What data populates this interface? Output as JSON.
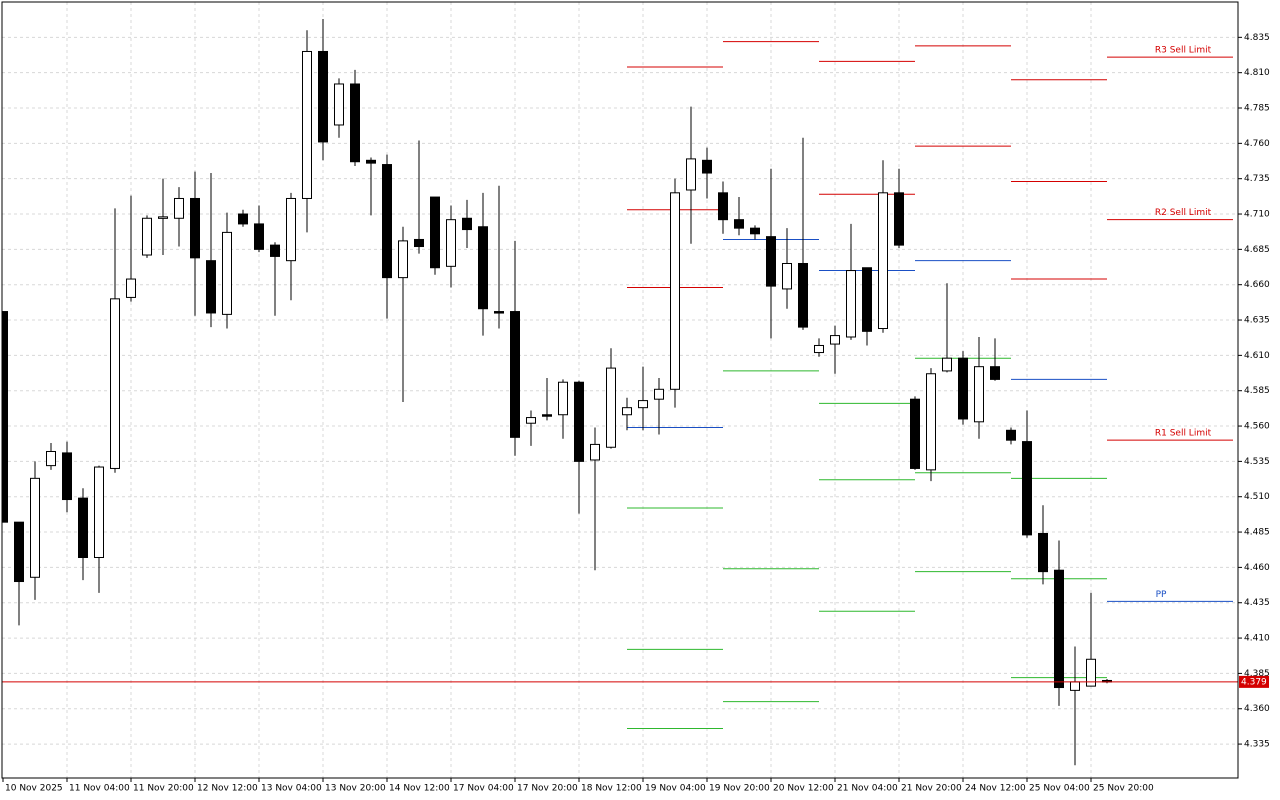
{
  "chart_data": {
    "type": "candlestick",
    "categories": [
      "10 Nov 2025",
      null,
      null,
      null,
      "11 Nov 04:00",
      null,
      null,
      null,
      "11 Nov 20:00",
      null,
      null,
      null,
      "12 Nov 12:00",
      null,
      null,
      null,
      "13 Nov 04:00",
      null,
      null,
      null,
      "13 Nov 20:00",
      null,
      null,
      null,
      "14 Nov 12:00",
      null,
      null,
      null,
      "17 Nov 04:00",
      null,
      null,
      null,
      "17 Nov 20:00",
      null,
      null,
      null,
      "18 Nov 12:00",
      null,
      null,
      null,
      "19 Nov 04:00",
      null,
      null,
      null,
      "19 Nov 20:00",
      null,
      null,
      null,
      "20 Nov 12:00",
      null,
      null,
      null,
      "21 Nov 04:00",
      null,
      null,
      null,
      "21 Nov 20:00",
      null,
      null,
      null,
      "24 Nov 12:00",
      null,
      null,
      null,
      "25 Nov 04:00",
      null,
      null,
      null,
      "25 Nov 20:00",
      null
    ],
    "open": [
      4.641,
      4.492,
      4.453,
      4.532,
      4.541,
      4.509,
      4.467,
      4.53,
      4.651,
      4.681,
      4.707,
      4.707,
      4.721,
      4.677,
      4.639,
      4.71,
      4.703,
      4.688,
      4.677,
      4.721,
      4.825,
      4.773,
      4.802,
      4.748,
      4.745,
      4.665,
      4.692,
      4.722,
      4.673,
      4.707,
      4.701,
      4.641,
      4.641,
      4.562,
      4.568,
      4.568,
      4.591,
      4.536,
      4.545,
      4.568,
      4.573,
      4.579,
      4.586,
      4.727,
      4.748,
      4.725,
      4.706,
      4.7,
      4.694,
      4.657,
      4.675,
      4.612,
      4.618,
      4.623,
      4.672,
      4.629,
      4.725,
      4.579,
      4.529,
      4.599,
      4.608,
      4.563,
      4.602,
      4.557,
      4.549,
      4.484,
      4.458,
      4.373,
      4.376,
      4.38
    ],
    "high": [
      4.641,
      4.492,
      4.535,
      4.548,
      4.549,
      4.516,
      4.532,
      4.714,
      4.723,
      4.709,
      4.735,
      4.729,
      4.74,
      4.739,
      4.711,
      4.713,
      4.716,
      4.69,
      4.725,
      4.84,
      4.848,
      4.806,
      4.812,
      4.75,
      4.752,
      4.701,
      4.762,
      4.722,
      4.716,
      4.72,
      4.725,
      4.73,
      4.691,
      4.571,
      4.594,
      4.593,
      4.592,
      4.559,
      4.615,
      4.58,
      4.602,
      4.594,
      4.735,
      4.786,
      4.757,
      4.733,
      4.722,
      4.702,
      4.742,
      4.7,
      4.764,
      4.622,
      4.631,
      4.703,
      4.672,
      4.748,
      4.742,
      4.581,
      4.601,
      4.661,
      4.613,
      4.623,
      4.622,
      4.559,
      4.571,
      4.504,
      4.479,
      4.404,
      4.442,
      4.381
    ],
    "low": [
      4.492,
      4.419,
      4.437,
      4.529,
      4.499,
      4.451,
      4.442,
      4.527,
      4.648,
      4.679,
      4.681,
      4.687,
      4.638,
      4.63,
      4.629,
      4.701,
      4.683,
      4.638,
      4.649,
      4.697,
      4.748,
      4.764,
      4.744,
      4.709,
      4.636,
      4.577,
      4.682,
      4.667,
      4.658,
      4.686,
      4.624,
      4.629,
      4.539,
      4.546,
      4.564,
      4.551,
      4.498,
      4.458,
      4.544,
      4.557,
      4.557,
      4.554,
      4.573,
      4.689,
      4.721,
      4.696,
      4.695,
      4.692,
      4.622,
      4.643,
      4.628,
      4.609,
      4.597,
      4.621,
      4.617,
      4.626,
      4.686,
      4.529,
      4.521,
      4.598,
      4.561,
      4.551,
      4.592,
      4.547,
      4.481,
      4.448,
      4.362,
      4.32,
      4.376,
      4.378
    ],
    "close": [
      4.492,
      4.45,
      4.523,
      4.542,
      4.508,
      4.467,
      4.531,
      4.65,
      4.664,
      4.707,
      4.708,
      4.721,
      4.679,
      4.64,
      4.697,
      4.703,
      4.685,
      4.68,
      4.721,
      4.825,
      4.761,
      4.802,
      4.747,
      4.746,
      4.665,
      4.691,
      4.687,
      4.672,
      4.706,
      4.699,
      4.643,
      4.64,
      4.552,
      4.566,
      4.567,
      4.591,
      4.535,
      4.547,
      4.601,
      4.573,
      4.578,
      4.586,
      4.725,
      4.749,
      4.739,
      4.706,
      4.7,
      4.696,
      4.659,
      4.675,
      4.63,
      4.617,
      4.624,
      4.67,
      4.627,
      4.725,
      4.688,
      4.53,
      4.597,
      4.608,
      4.565,
      4.602,
      4.593,
      4.55,
      4.483,
      4.457,
      4.375,
      4.379,
      4.395,
      4.379
    ],
    "up_color": "#ffffff",
    "down_color": "#000000",
    "ylim": [
      4.311,
      4.86
    ],
    "yticks": [
      4.335,
      {
        "value": 4.36,
        "label": "4.360"
      },
      4.385,
      {
        "value": 4.41,
        "label": "4.410"
      },
      4.435,
      {
        "value": 4.46,
        "label": "4.460"
      },
      4.485,
      {
        "value": 4.51,
        "label": "4.510"
      },
      4.535,
      {
        "value": 4.56,
        "label": "4.560"
      },
      4.585,
      {
        "value": 4.61,
        "label": "4.610"
      },
      4.635,
      {
        "value": 4.66,
        "label": "4.660"
      },
      4.685,
      {
        "value": 4.71,
        "label": "4.710"
      },
      4.735,
      {
        "value": 4.76,
        "label": "4.760"
      },
      4.785,
      {
        "value": 4.81,
        "label": "4.810"
      },
      4.835
    ],
    "grid": true,
    "last_price": 4.379,
    "price_line_color": "#d40000",
    "resistance_color": "#d40000",
    "pivot_color": "#1a4fc4",
    "support_color": "#2eb82e",
    "pivot_levels": [
      {
        "start": 39,
        "end": 45,
        "resistance": [
          4.814,
          4.713,
          4.658
        ],
        "pivot": 4.559,
        "support": [
          4.502,
          4.402,
          4.346
        ]
      },
      {
        "start": 45,
        "end": 51,
        "resistance": [
          4.832
        ],
        "pivot": 4.692,
        "support": [
          4.599,
          4.459,
          4.365
        ]
      },
      {
        "start": 51,
        "end": 57,
        "resistance": [
          4.818,
          4.724
        ],
        "pivot": 4.67,
        "support": [
          4.576,
          4.522,
          4.429
        ]
      },
      {
        "start": 57,
        "end": 63,
        "resistance": [
          4.829,
          4.758
        ],
        "pivot": 4.677,
        "support": [
          4.608,
          4.527,
          4.457
        ]
      },
      {
        "start": 63,
        "end": 69,
        "resistance": [
          4.805,
          4.733,
          4.664
        ],
        "pivot": 4.593,
        "support": [
          4.523,
          4.452,
          4.382
        ]
      },
      {
        "start": 69,
        "resistance": [
          4.821,
          4.706,
          4.55
        ],
        "resistance_labels": [
          "R3 Sell Limit",
          "R2 Sell Limit",
          "R1 Sell Limit"
        ],
        "pivot": 4.436,
        "pivot_label": "PP"
      }
    ]
  }
}
